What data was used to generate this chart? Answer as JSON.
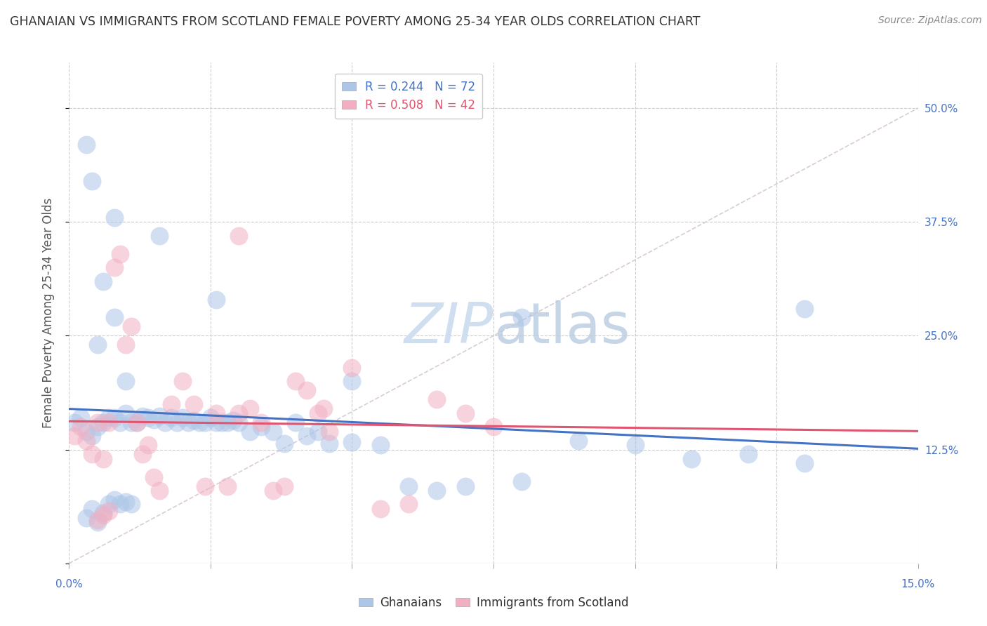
{
  "title": "GHANAIAN VS IMMIGRANTS FROM SCOTLAND FEMALE POVERTY AMONG 25-34 YEAR OLDS CORRELATION CHART",
  "source": "Source: ZipAtlas.com",
  "ylabel": "Female Poverty Among 25-34 Year Olds",
  "xlim": [
    0.0,
    0.15
  ],
  "ylim": [
    0.0,
    0.55
  ],
  "yticks": [
    0.0,
    0.125,
    0.25,
    0.375,
    0.5
  ],
  "yticklabels": [
    "",
    "12.5%",
    "25.0%",
    "37.5%",
    "50.0%"
  ],
  "xtick_positions": [
    0.0,
    0.025,
    0.05,
    0.075,
    0.1,
    0.125,
    0.15
  ],
  "legend_R1": "R = 0.244",
  "legend_N1": "N = 72",
  "legend_R2": "R = 0.508",
  "legend_N2": "N = 42",
  "color_blue": "#adc6e8",
  "color_pink": "#f2afc2",
  "line_blue": "#4472c4",
  "line_pink": "#e05570",
  "watermark_color": "#d0dff0",
  "blue_x": [
    0.001,
    0.002,
    0.003,
    0.003,
    0.004,
    0.004,
    0.005,
    0.005,
    0.006,
    0.006,
    0.007,
    0.007,
    0.008,
    0.008,
    0.009,
    0.009,
    0.01,
    0.01,
    0.011,
    0.011,
    0.012,
    0.013,
    0.014,
    0.015,
    0.016,
    0.017,
    0.018,
    0.019,
    0.02,
    0.021,
    0.022,
    0.023,
    0.024,
    0.025,
    0.026,
    0.027,
    0.028,
    0.029,
    0.03,
    0.032,
    0.034,
    0.036,
    0.038,
    0.04,
    0.042,
    0.044,
    0.046,
    0.05,
    0.055,
    0.06,
    0.065,
    0.07,
    0.08,
    0.09,
    0.1,
    0.11,
    0.12,
    0.13,
    0.003,
    0.004,
    0.008,
    0.016,
    0.026,
    0.05,
    0.08,
    0.13,
    0.005,
    0.006,
    0.008,
    0.01
  ],
  "blue_y": [
    0.155,
    0.16,
    0.145,
    0.05,
    0.14,
    0.06,
    0.15,
    0.045,
    0.155,
    0.055,
    0.16,
    0.065,
    0.16,
    0.07,
    0.155,
    0.065,
    0.165,
    0.068,
    0.155,
    0.065,
    0.155,
    0.162,
    0.16,
    0.158,
    0.162,
    0.155,
    0.16,
    0.155,
    0.16,
    0.155,
    0.157,
    0.155,
    0.155,
    0.16,
    0.155,
    0.155,
    0.155,
    0.157,
    0.155,
    0.145,
    0.15,
    0.145,
    0.132,
    0.155,
    0.14,
    0.145,
    0.132,
    0.133,
    0.13,
    0.085,
    0.08,
    0.085,
    0.09,
    0.135,
    0.13,
    0.115,
    0.12,
    0.11,
    0.46,
    0.42,
    0.38,
    0.36,
    0.29,
    0.2,
    0.27,
    0.28,
    0.24,
    0.31,
    0.27,
    0.2
  ],
  "pink_x": [
    0.001,
    0.002,
    0.003,
    0.004,
    0.005,
    0.005,
    0.006,
    0.006,
    0.007,
    0.007,
    0.008,
    0.009,
    0.01,
    0.011,
    0.012,
    0.013,
    0.014,
    0.015,
    0.016,
    0.018,
    0.02,
    0.022,
    0.024,
    0.026,
    0.028,
    0.03,
    0.032,
    0.034,
    0.036,
    0.038,
    0.04,
    0.042,
    0.044,
    0.046,
    0.05,
    0.055,
    0.06,
    0.065,
    0.07,
    0.075,
    0.03,
    0.045
  ],
  "pink_y": [
    0.14,
    0.15,
    0.135,
    0.12,
    0.155,
    0.048,
    0.115,
    0.053,
    0.155,
    0.058,
    0.325,
    0.34,
    0.24,
    0.26,
    0.155,
    0.12,
    0.13,
    0.095,
    0.08,
    0.175,
    0.2,
    0.175,
    0.085,
    0.165,
    0.085,
    0.165,
    0.17,
    0.155,
    0.08,
    0.085,
    0.2,
    0.19,
    0.165,
    0.145,
    0.215,
    0.06,
    0.065,
    0.18,
    0.165,
    0.15,
    0.36,
    0.17
  ]
}
